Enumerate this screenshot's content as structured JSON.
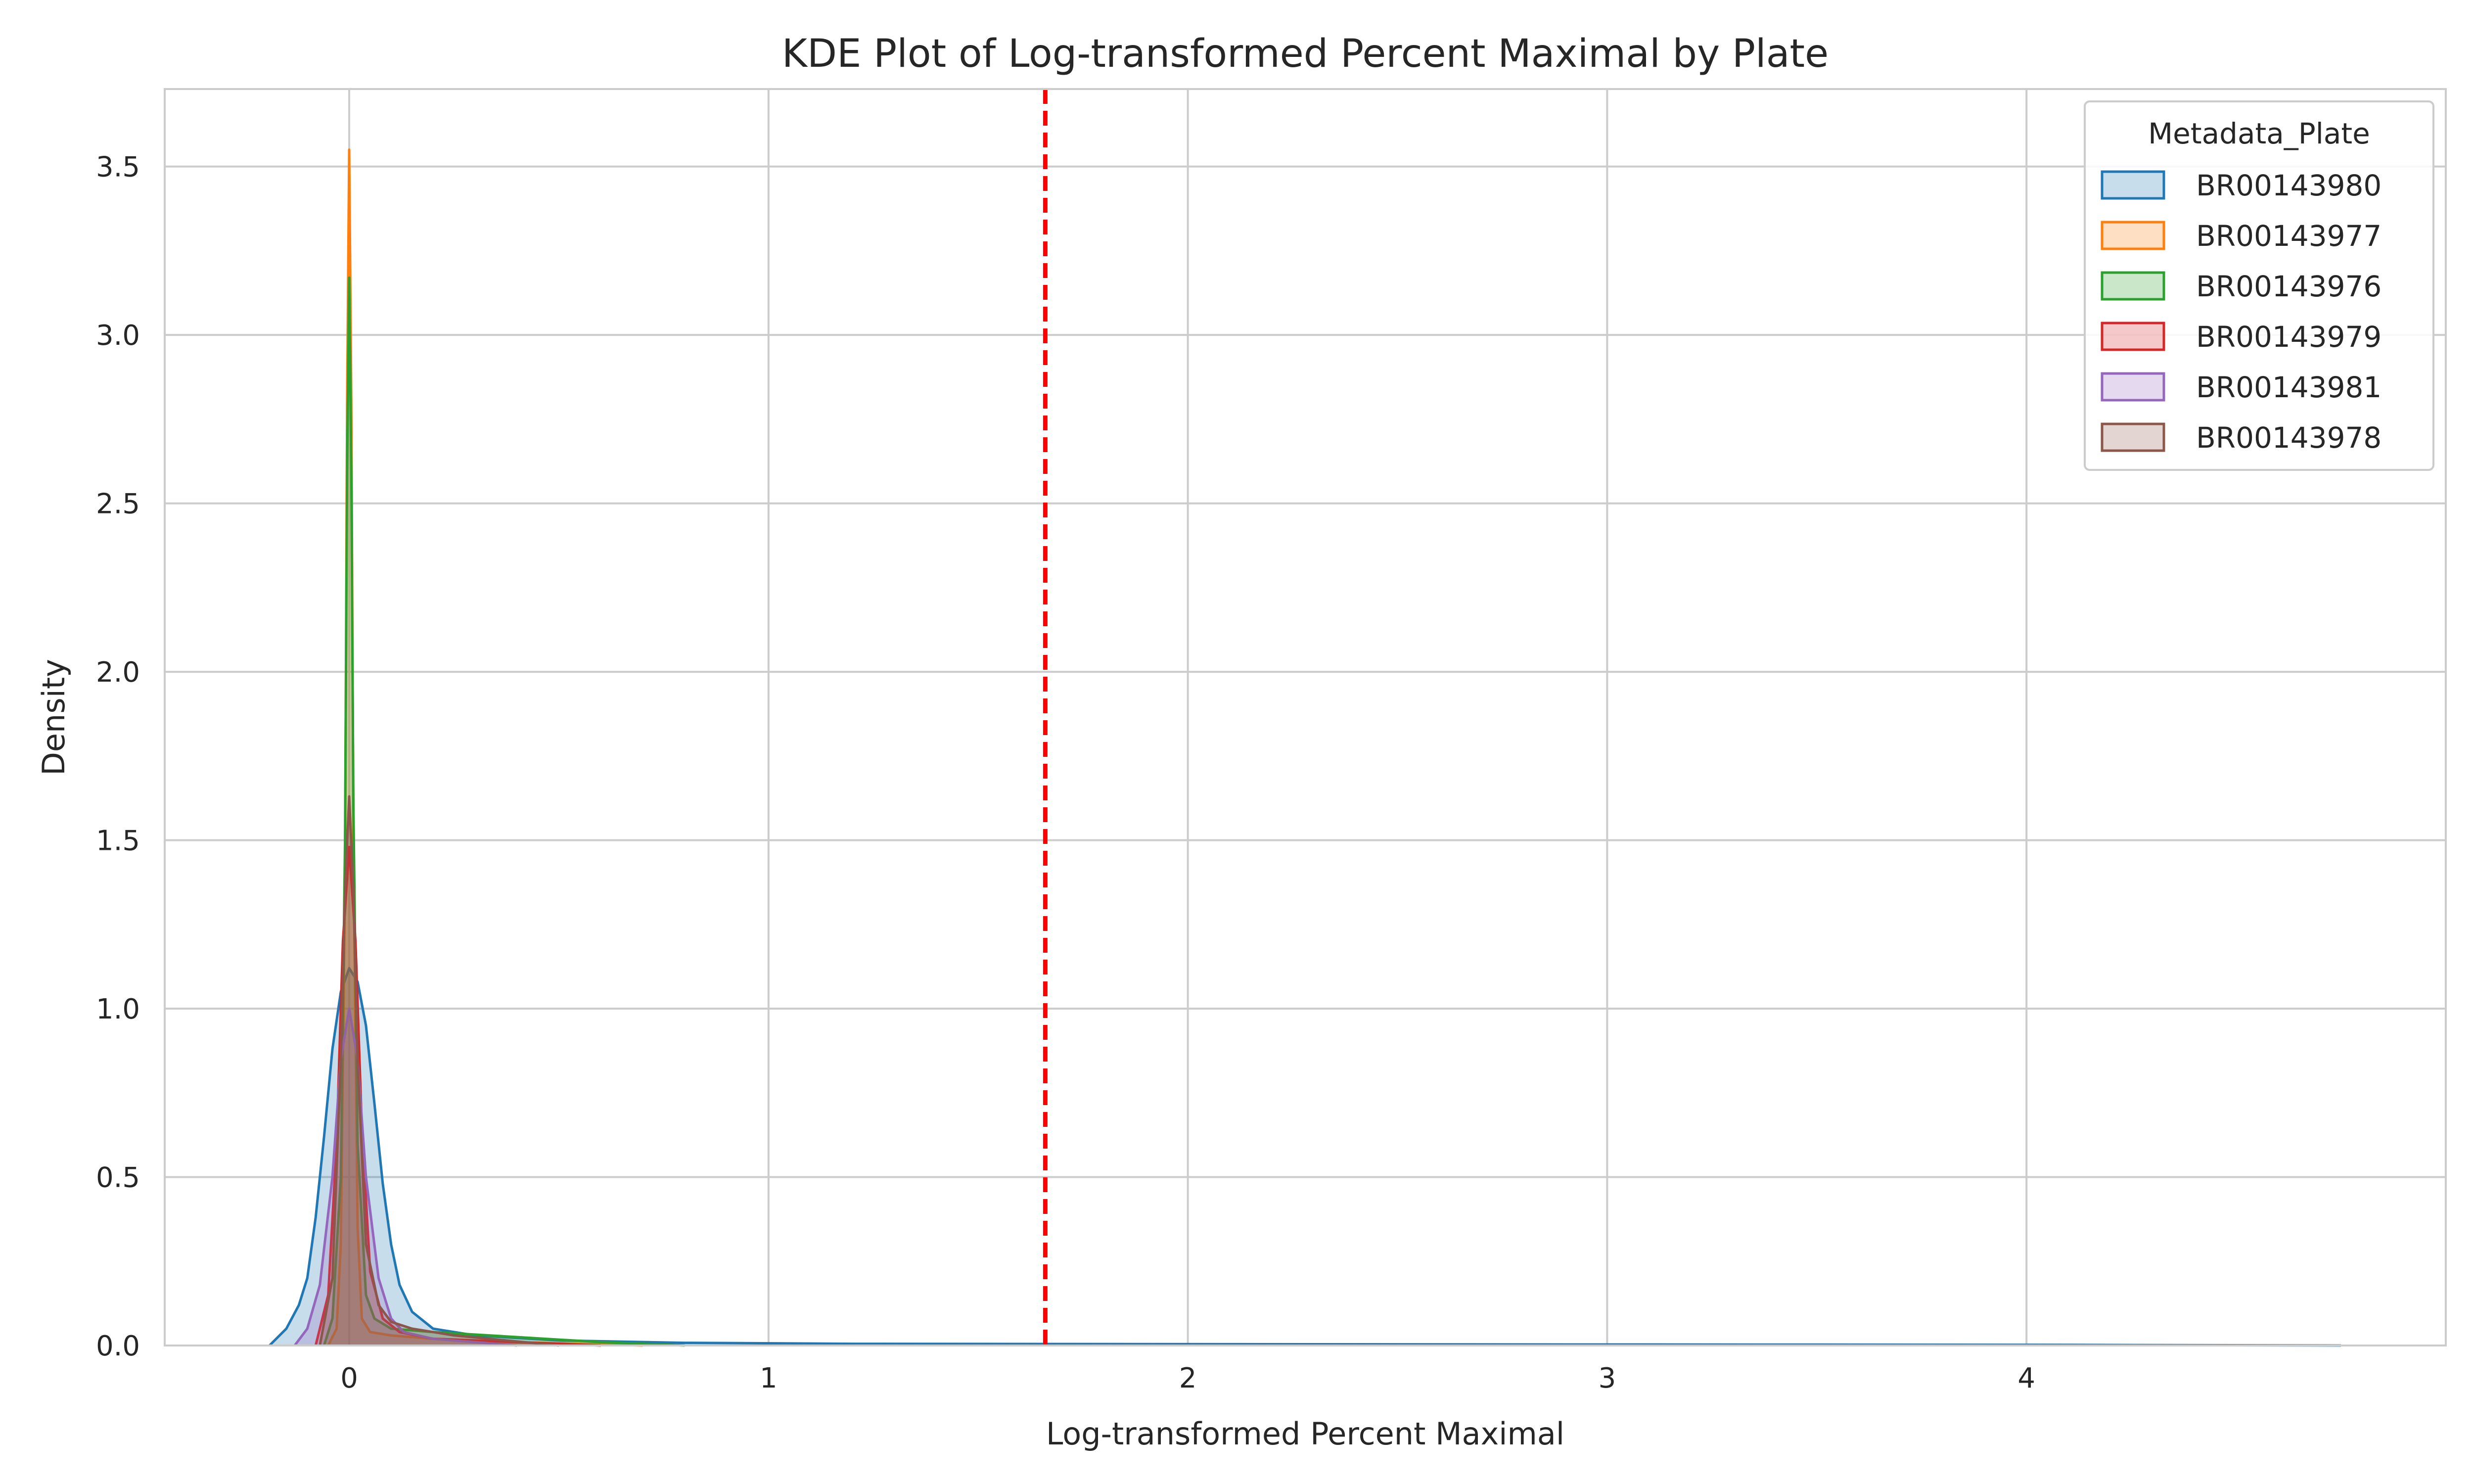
{
  "chart_data": {
    "type": "area",
    "title": "KDE Plot of Log-transformed Percent Maximal by Plate",
    "xlabel": "Log-transformed Percent Maximal",
    "ylabel": "Density",
    "xlim": [
      -0.44,
      5.0
    ],
    "ylim": [
      0,
      3.73
    ],
    "xticks": [
      0,
      1,
      2,
      3,
      4
    ],
    "xtick_labels": [
      "0",
      "1",
      "2",
      "3",
      "4"
    ],
    "yticks": [
      0.0,
      0.5,
      1.0,
      1.5,
      2.0,
      2.5,
      3.0,
      3.5
    ],
    "ytick_labels": [
      "0.0",
      "0.5",
      "1.0",
      "1.5",
      "2.0",
      "2.5",
      "3.0",
      "3.5"
    ],
    "grid": true,
    "legend": {
      "title": "Metadata_Plate",
      "placement": "top-right"
    },
    "reference_line": {
      "x": 1.66,
      "color": "#ff0000",
      "style": "dashed"
    },
    "series": [
      {
        "name": "BR00143980",
        "color": "#1f77b4",
        "x": [
          -0.19,
          -0.15,
          -0.12,
          -0.1,
          -0.08,
          -0.06,
          -0.04,
          -0.02,
          0.0,
          0.02,
          0.04,
          0.06,
          0.08,
          0.1,
          0.12,
          0.15,
          0.2,
          0.3,
          0.5,
          0.8,
          1.2,
          2.0,
          3.0,
          4.0,
          4.75
        ],
        "y": [
          0.0,
          0.05,
          0.12,
          0.2,
          0.38,
          0.62,
          0.88,
          1.05,
          1.12,
          1.08,
          0.95,
          0.72,
          0.48,
          0.3,
          0.18,
          0.1,
          0.05,
          0.03,
          0.015,
          0.008,
          0.005,
          0.004,
          0.003,
          0.002,
          0.0
        ]
      },
      {
        "name": "BR00143977",
        "color": "#ff7f0e",
        "x": [
          -0.05,
          -0.03,
          -0.02,
          -0.01,
          -0.005,
          0.0,
          0.005,
          0.01,
          0.02,
          0.03,
          0.05,
          0.1,
          0.2,
          0.4,
          0.7
        ],
        "y": [
          0.0,
          0.05,
          0.3,
          1.4,
          2.8,
          3.55,
          2.8,
          1.5,
          0.35,
          0.08,
          0.04,
          0.03,
          0.02,
          0.01,
          0.0
        ]
      },
      {
        "name": "BR00143976",
        "color": "#2ca02c",
        "x": [
          -0.06,
          -0.04,
          -0.02,
          -0.01,
          -0.005,
          0.0,
          0.005,
          0.01,
          0.02,
          0.04,
          0.06,
          0.1,
          0.2,
          0.4,
          0.6,
          0.8
        ],
        "y": [
          0.0,
          0.08,
          0.5,
          1.5,
          2.6,
          3.17,
          2.6,
          1.6,
          0.6,
          0.15,
          0.08,
          0.05,
          0.04,
          0.025,
          0.01,
          0.0
        ]
      },
      {
        "name": "BR00143979",
        "color": "#d62728",
        "x": [
          -0.08,
          -0.05,
          -0.03,
          -0.015,
          0.0,
          0.015,
          0.03,
          0.05,
          0.08,
          0.12,
          0.2,
          0.4,
          0.6
        ],
        "y": [
          0.0,
          0.15,
          0.6,
          1.2,
          1.48,
          1.2,
          0.65,
          0.22,
          0.08,
          0.04,
          0.02,
          0.01,
          0.0
        ]
      },
      {
        "name": "BR00143981",
        "color": "#9467bd",
        "x": [
          -0.13,
          -0.1,
          -0.07,
          -0.04,
          -0.02,
          0.0,
          0.02,
          0.04,
          0.07,
          0.1,
          0.13,
          0.2,
          0.4
        ],
        "y": [
          0.0,
          0.05,
          0.18,
          0.5,
          0.85,
          1.0,
          0.85,
          0.5,
          0.2,
          0.08,
          0.04,
          0.02,
          0.0
        ]
      },
      {
        "name": "BR00143978",
        "color": "#8c564b",
        "x": [
          -0.07,
          -0.04,
          -0.02,
          -0.01,
          0.0,
          0.01,
          0.02,
          0.04,
          0.07,
          0.1,
          0.15,
          0.25,
          0.5
        ],
        "y": [
          0.0,
          0.2,
          0.85,
          1.35,
          1.63,
          1.35,
          0.85,
          0.3,
          0.12,
          0.07,
          0.05,
          0.03,
          0.0
        ]
      }
    ]
  }
}
